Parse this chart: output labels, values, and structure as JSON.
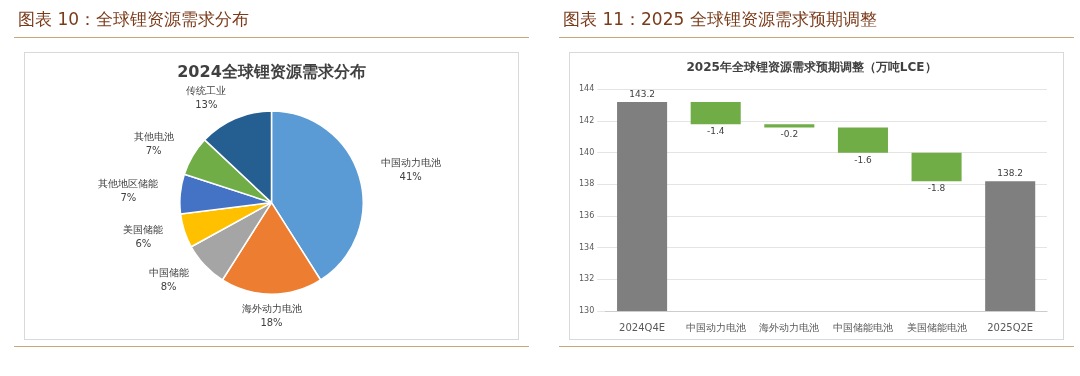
{
  "chart_data": [
    {
      "type": "pie",
      "title": "图表 10：全球锂资源需求分布",
      "subtitle": "2024全球锂资源需求分布",
      "categories": [
        "中国动力电池",
        "海外动力电池",
        "中国储能",
        "美国储能",
        "其他地区储能",
        "其他电池",
        "传统工业"
      ],
      "values": [
        41,
        18,
        8,
        6,
        7,
        7,
        13
      ],
      "colors": [
        "#5b9bd5",
        "#ed7d31",
        "#a5a5a5",
        "#ffc000",
        "#4472c4",
        "#70ad47",
        "#255e91"
      ],
      "value_labels": [
        "41%",
        "18%",
        "8%",
        "6%",
        "7%",
        "7%",
        "13%"
      ]
    },
    {
      "type": "bar",
      "title": "图表 11：2025 全球锂资源需求预期调整",
      "subtitle": "2025年全球锂资源需求预期调整（万吨LCE）",
      "categories": [
        "2024Q4E",
        "中国动力电池",
        "海外动力电池",
        "中国储能电池",
        "美国储能电池",
        "2025Q2E"
      ],
      "values": [
        143.2,
        -1.4,
        -0.2,
        -1.6,
        -1.8,
        138.2
      ],
      "base": [
        null,
        143.2,
        141.8,
        141.6,
        140.0,
        null
      ],
      "colors": [
        "#7f7f7f",
        "#70ad47",
        "#70ad47",
        "#70ad47",
        "#70ad47",
        "#7f7f7f"
      ],
      "ylim": [
        130,
        144
      ],
      "yticks": [
        130,
        132,
        134,
        136,
        138,
        140,
        142,
        144
      ],
      "grid": "y",
      "data_labels": true
    }
  ]
}
